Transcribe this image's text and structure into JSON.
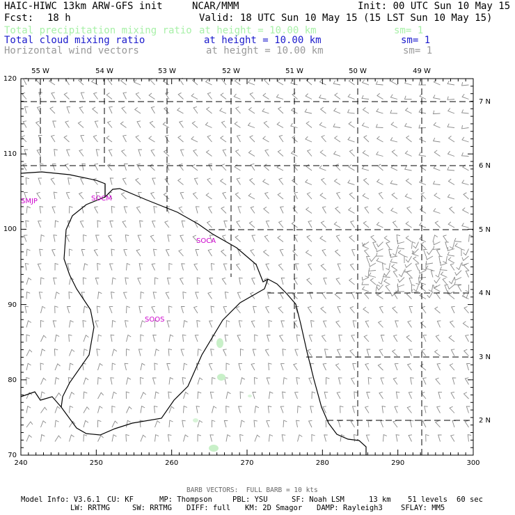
{
  "header": {
    "model": "HAIC-HIWC 13km ARW-GFS init",
    "org": "NCAR/MMM",
    "init": "Init: 00 UTC Sun 10 May 15",
    "fcst_label": "Fcst:",
    "fcst_value": "18 h",
    "valid": "Valid: 18 UTC Sun 10 May 15 (15 LST Sun 10 May 15)",
    "fields": [
      {
        "name": "Total precipitation mixing ratio",
        "level": "at height = 10.00 km",
        "sm": "sm= 1",
        "color": "#a8f0a8"
      },
      {
        "name": "Total cloud mixing ratio",
        "level": "at height = 10.00 km",
        "sm": "sm= 1",
        "color": "#1a1acc"
      },
      {
        "name": "Horizontal wind vectors",
        "level": "at height = 10.00 km",
        "sm": "sm= 1",
        "color": "#999999"
      }
    ]
  },
  "map": {
    "x_ticks": [
      "240",
      "250",
      "260",
      "270",
      "280",
      "290",
      "300"
    ],
    "y_ticks": [
      "70",
      "80",
      "90",
      "100",
      "110",
      "120"
    ],
    "lon_labels": [
      "55 W",
      "54 W",
      "53 W",
      "52 W",
      "51 W",
      "50 W",
      "49 W"
    ],
    "lat_labels": [
      "2 N",
      "3 N",
      "4 N",
      "5 N",
      "6 N",
      "7 N"
    ],
    "stations": [
      "SMJP",
      "SOCM",
      "SOCA",
      "SOOS"
    ],
    "barb_color": "#888888",
    "precip_color": "#c8f0c8",
    "station_color": "#cc00cc"
  },
  "footer": {
    "barb_note": "BARB VECTORS:  FULL BARB = 10 kts",
    "line1": [
      "Model Info: V3.6.1",
      "CU: KF",
      "MP: Thompson",
      "PBL: YSU",
      "SF: Noah LSM",
      "13 km",
      "51 levels",
      "60 sec"
    ],
    "line2": [
      "LW: RRTMG",
      "SW: RRTMG",
      "DIFF: full",
      "KM: 2D Smagor",
      "DAMP: Rayleigh3",
      "SFLAY: MM5"
    ]
  }
}
